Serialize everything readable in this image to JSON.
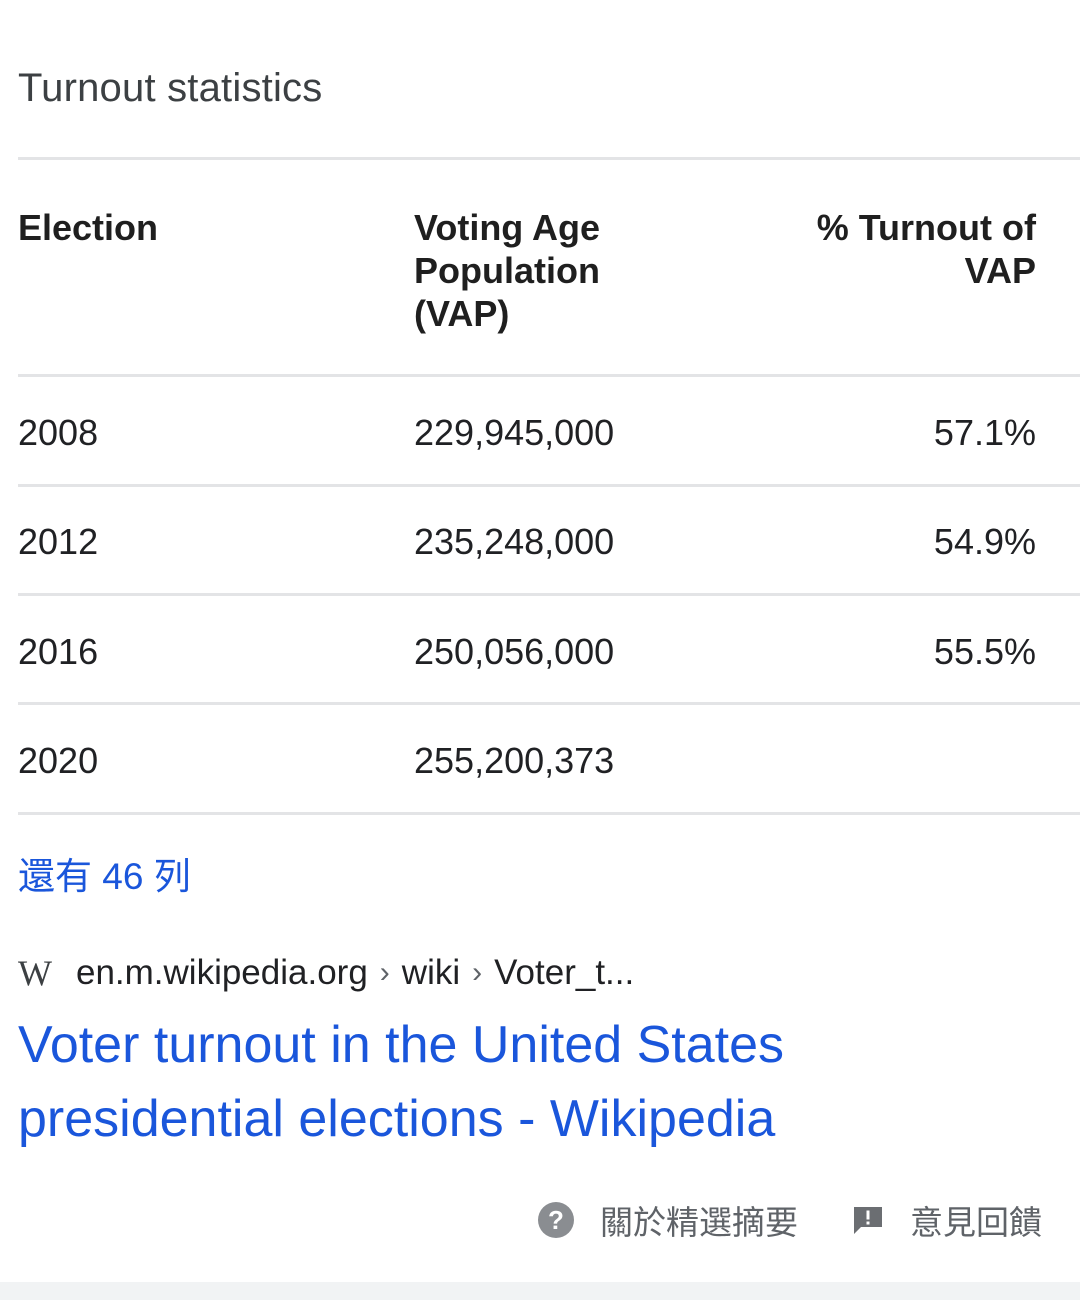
{
  "heading": "Turnout statistics",
  "table": {
    "headers": {
      "election": "Election",
      "vap": "Voting Age Population (VAP)",
      "turnout": "% Turnout of VAP"
    },
    "rows": [
      {
        "election": "2008",
        "vap": "229,945,000",
        "turnout": "57.1%"
      },
      {
        "election": "2012",
        "vap": "235,248,000",
        "turnout": "54.9%"
      },
      {
        "election": "2016",
        "vap": "250,056,000",
        "turnout": "55.5%"
      },
      {
        "election": "2020",
        "vap": "255,200,373",
        "turnout": ""
      }
    ]
  },
  "more_rows_link": "還有 46 列",
  "source": {
    "logo": "W",
    "domain": "en.m.wikipedia.org",
    "sep": "›",
    "path1": "wiki",
    "path2": "Voter_t..."
  },
  "result_title": "Voter turnout in the United States presidential elections - Wikipedia",
  "footer": {
    "about_label": "關於精選摘要",
    "feedback_label": "意見回饋",
    "help_glyph": "?"
  },
  "colors": {
    "link": "#1a56db",
    "divider": "#e3e4e6"
  }
}
